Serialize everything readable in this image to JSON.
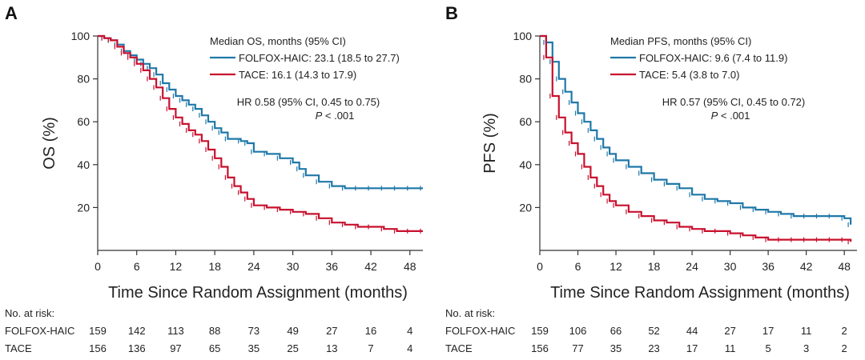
{
  "chart_data": [
    {
      "type": "line",
      "panel_label": "A",
      "xlabel": "Time Since Random Assignment (months)",
      "ylabel": "OS (%)",
      "xlim": [
        0,
        50
      ],
      "ylim": [
        0,
        100
      ],
      "xticks": [
        0,
        6,
        12,
        18,
        24,
        30,
        36,
        42,
        48
      ],
      "yticks": [
        20,
        40,
        60,
        80,
        100
      ],
      "grid": false,
      "legend_position": "top-right",
      "legend_title": "Median OS, months (95% CI)",
      "series": [
        {
          "name": "FOLFOX-HAIC",
          "legend_label": "FOLFOX-HAIC: 23.1 (18.5 to 27.7)",
          "color": "#1f78a8",
          "x": [
            0,
            1,
            2,
            3,
            4,
            5,
            6,
            7,
            8,
            9,
            10,
            11,
            12,
            13,
            14,
            15,
            16,
            17,
            18,
            19,
            20,
            22,
            23,
            24,
            26,
            28,
            30,
            31,
            32,
            34,
            36,
            38,
            40,
            42,
            44,
            46,
            48,
            50
          ],
          "y": [
            100,
            99,
            98,
            96,
            93,
            91,
            89,
            87,
            85,
            82,
            78,
            75,
            72,
            70,
            68,
            66,
            63,
            60,
            57,
            55,
            52,
            51,
            50,
            46,
            45,
            43,
            41,
            38,
            35,
            32,
            30,
            29,
            29,
            29,
            29,
            29,
            29,
            29
          ]
        },
        {
          "name": "TACE",
          "legend_label": "TACE: 16.1 (14.3 to 17.9)",
          "color": "#c8102e",
          "x": [
            0,
            1,
            2,
            3,
            4,
            5,
            6,
            7,
            8,
            9,
            10,
            11,
            12,
            13,
            14,
            15,
            16,
            17,
            18,
            19,
            20,
            21,
            22,
            23,
            24,
            26,
            28,
            30,
            32,
            34,
            36,
            38,
            40,
            42,
            44,
            46,
            48,
            50
          ],
          "y": [
            100,
            99,
            98,
            95,
            92,
            90,
            87,
            84,
            80,
            76,
            71,
            66,
            62,
            59,
            56,
            54,
            51,
            47,
            43,
            39,
            34,
            30,
            27,
            24,
            21,
            20,
            19,
            18,
            17,
            15,
            13,
            12,
            11,
            11,
            10,
            9,
            9,
            9
          ]
        }
      ],
      "hr_text": "HR 0.58 (95% CI, 0.45 to 0.75)",
      "p_prefix": "P",
      "p_value": " < .001",
      "risk_table": {
        "title": "No. at risk:",
        "times": [
          0,
          6,
          12,
          18,
          24,
          30,
          36,
          42,
          48
        ],
        "rows": [
          {
            "label": "FOLFOX-HAIC",
            "values": [
              "159",
              "142",
              "113",
              "88",
              "73",
              "49",
              "27",
              "16",
              "4"
            ]
          },
          {
            "label": "TACE",
            "values": [
              "156",
              "136",
              "97",
              "65",
              "35",
              "25",
              "13",
              "7",
              "4"
            ]
          }
        ]
      }
    },
    {
      "type": "line",
      "panel_label": "B",
      "xlabel": "Time Since Random Assignment (months)",
      "ylabel": "PFS (%)",
      "xlim": [
        0,
        50
      ],
      "ylim": [
        0,
        100
      ],
      "xticks": [
        0,
        6,
        12,
        18,
        24,
        30,
        36,
        42,
        48
      ],
      "yticks": [
        20,
        40,
        60,
        80,
        100
      ],
      "grid": false,
      "legend_position": "top-right",
      "legend_title": "Median PFS, months (95% CI)",
      "series": [
        {
          "name": "FOLFOX-HAIC",
          "legend_label": "FOLFOX-HAIC: 9.6 (7.4 to 11.9)",
          "color": "#1f78a8",
          "x": [
            0,
            1,
            2,
            3,
            4,
            5,
            6,
            7,
            8,
            9,
            10,
            11,
            12,
            14,
            16,
            18,
            20,
            22,
            24,
            26,
            28,
            30,
            32,
            34,
            36,
            38,
            40,
            42,
            44,
            46,
            48,
            49
          ],
          "y": [
            100,
            97,
            88,
            80,
            74,
            69,
            64,
            60,
            56,
            52,
            48,
            45,
            42,
            39,
            36,
            33,
            31,
            29,
            26,
            24,
            23,
            22,
            20,
            19,
            18,
            17,
            16,
            16,
            16,
            16,
            15,
            12
          ]
        },
        {
          "name": "TACE",
          "legend_label": "TACE: 5.4 (3.8 to 7.0)",
          "color": "#c8102e",
          "x": [
            0,
            1,
            2,
            3,
            4,
            5,
            6,
            7,
            8,
            9,
            10,
            11,
            12,
            14,
            16,
            18,
            20,
            22,
            24,
            26,
            28,
            30,
            32,
            34,
            36,
            38,
            40,
            42,
            44,
            46,
            48,
            49
          ],
          "y": [
            100,
            90,
            72,
            62,
            55,
            50,
            45,
            39,
            34,
            30,
            26,
            23,
            21,
            18,
            16,
            14,
            13,
            11,
            10,
            9,
            9,
            8,
            7,
            6,
            5,
            5,
            5,
            5,
            5,
            5,
            5,
            4
          ]
        }
      ],
      "hr_text": "HR 0.57 (95% CI, 0.45 to 0.72)",
      "p_prefix": "P",
      "p_value": " < .001",
      "risk_table": {
        "title": "No. at risk:",
        "times": [
          0,
          6,
          12,
          18,
          24,
          30,
          36,
          42,
          48
        ],
        "rows": [
          {
            "label": "FOLFOX-HAIC",
            "values": [
              "159",
              "106",
              "66",
              "52",
              "44",
              "27",
              "17",
              "11",
              "2"
            ]
          },
          {
            "label": "TACE",
            "values": [
              "156",
              "77",
              "35",
              "23",
              "17",
              "11",
              "5",
              "3",
              "2"
            ]
          }
        ]
      }
    }
  ]
}
